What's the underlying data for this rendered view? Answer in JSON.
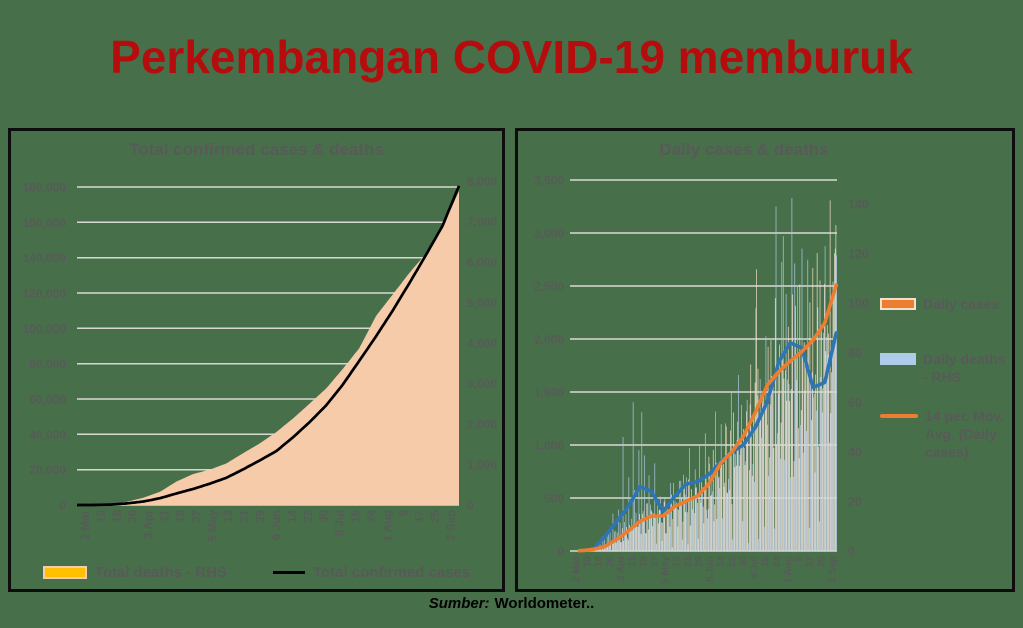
{
  "page": {
    "background_color": "#47704A",
    "title": "Perkembangan COVID-19 memburuk",
    "title_color": "#B50D0D",
    "source_label": "Sumber:",
    "source_text": "Worldometer.."
  },
  "chart_data": [
    {
      "type": "area",
      "title": "Total confirmed cases & deaths",
      "x_tick_labels": [
        "2 Mar",
        "10",
        "18",
        "26",
        "3 Apr",
        "11",
        "19",
        "27",
        "5 May",
        "13",
        "21",
        "29",
        "6 Jun",
        "14",
        "22",
        "30",
        "8 Jul",
        "16",
        "24",
        "1 Aug",
        "9",
        "17",
        "25",
        "2 Sep"
      ],
      "left_axis": {
        "min": 0,
        "max": 180000,
        "step": 20000
      },
      "right_axis": {
        "min": 0,
        "max": 8000,
        "step": 1000
      },
      "grid": true,
      "gridline_color": "#D8D8D3",
      "legend_position": "bottom",
      "series": [
        {
          "name": "Total deaths - RHS",
          "type": "area",
          "axis": "right",
          "fill": "#F5CBAA",
          "values": [
            0,
            1,
            19,
            78,
            181,
            327,
            582,
            765,
            872,
            1028,
            1278,
            1520,
            1801,
            2134,
            2500,
            2876,
            3359,
            3873,
            4665,
            5193,
            5723,
            6207,
            6858,
            7750
          ]
        },
        {
          "name": "Total confirmed cases",
          "type": "line",
          "axis": "left",
          "color": "#000000",
          "values": [
            2,
            27,
            227,
            893,
            1986,
            3842,
            6575,
            9096,
            12071,
            15438,
            20162,
            25216,
            30514,
            38277,
            46845,
            56385,
            68079,
            81668,
            95418,
            109936,
            125396,
            141370,
            157859,
            180646
          ]
        }
      ],
      "legend": [
        {
          "label": "Total deaths - RHS",
          "swatch_color": "#FFC000",
          "swatch_type": "box"
        },
        {
          "label": "Total confirmed cases",
          "swatch_color": "#000000",
          "swatch_type": "line"
        }
      ]
    },
    {
      "type": "bar",
      "title": "Daily cases & deaths",
      "x_tick_labels": [
        "2 Mar",
        "10",
        "18",
        "26",
        "3 Apr",
        "11",
        "19",
        "27",
        "5 May",
        "13",
        "21",
        "29",
        "6 Jun",
        "14",
        "22",
        "30",
        "8 Jul",
        "16",
        "24",
        "1 Aug",
        "9",
        "17",
        "25",
        "2 Sep"
      ],
      "left_axis": {
        "min": 0,
        "max": 3500,
        "step": 500
      },
      "right_axis": {
        "min": 0,
        "max": 140,
        "step": 20
      },
      "grid": true,
      "gridline_color": "#D8D8D3",
      "legend_position": "right",
      "series": [
        {
          "name": "Daily cases",
          "type": "bar",
          "axis": "left",
          "color": "#F9E0CA",
          "trend_values": [
            0,
            4,
            16,
            45,
            110,
            190,
            280,
            330,
            330,
            420,
            470,
            520,
            640,
            830,
            940,
            1090,
            1310,
            1560,
            1690,
            1790,
            1880,
            1990,
            2150,
            2510
          ],
          "spike_points": [
            [
              129,
              2657
            ],
            [
              166,
              2345
            ],
            [
              180,
              3308
            ],
            [
              184,
              3075
            ]
          ],
          "noise": {
            "base": 0.95,
            "amp": 0.5,
            "f1": 2.93,
            "f2": 0.74,
            "ph": 1.7
          }
        },
        {
          "name": "Daily deaths - RHS",
          "type": "bar",
          "axis": "right",
          "color": "#AECBEA",
          "trend_values": [
            0,
            0,
            1,
            6,
            12,
            18,
            26,
            24,
            16,
            22,
            27,
            28,
            31,
            36,
            40,
            43,
            50,
            60,
            76,
            84,
            82,
            66,
            68,
            88
          ],
          "spike_points": [
            [
              36,
              46
            ],
            [
              43,
              60
            ],
            [
              49,
              56
            ],
            [
              116,
              71
            ],
            [
              128,
              98
            ],
            [
              142,
              139
            ],
            [
              147,
              127
            ],
            [
              155,
              116
            ],
            [
              176,
              123
            ],
            [
              183,
              122
            ]
          ],
          "noise": {
            "base": 0.85,
            "amp": 0.85,
            "f1": 2.31,
            "f2": 0.53,
            "ph": 0.6
          }
        },
        {
          "name": "14 per. Mov. Avg. (Daily cases)",
          "type": "line",
          "axis": "left",
          "color": "#ED7D31",
          "values": [
            0,
            4,
            16,
            45,
            110,
            190,
            280,
            330,
            330,
            420,
            470,
            520,
            640,
            830,
            940,
            1090,
            1310,
            1560,
            1690,
            1790,
            1880,
            1990,
            2150,
            2510
          ]
        },
        {
          "name": "Daily deaths moving average - RHS (no legend entry shown)",
          "type": "line",
          "axis": "right",
          "color": "#2E75B6",
          "values": [
            0,
            0,
            1,
            6,
            12,
            18,
            26,
            24,
            16,
            22,
            27,
            28,
            31,
            36,
            40,
            43,
            50,
            60,
            76,
            84,
            82,
            66,
            68,
            88
          ]
        }
      ],
      "legend": [
        {
          "label": "Daily cases",
          "swatch_color": "#ED7D31",
          "swatch_type": "box"
        },
        {
          "label": "Daily deaths - RHS",
          "swatch_color": "#AECBEA",
          "swatch_type": "box"
        },
        {
          "label": "14 per. Mov. Avg. (Daily cases)",
          "swatch_color": "#ED7D31",
          "swatch_type": "line"
        }
      ]
    }
  ]
}
